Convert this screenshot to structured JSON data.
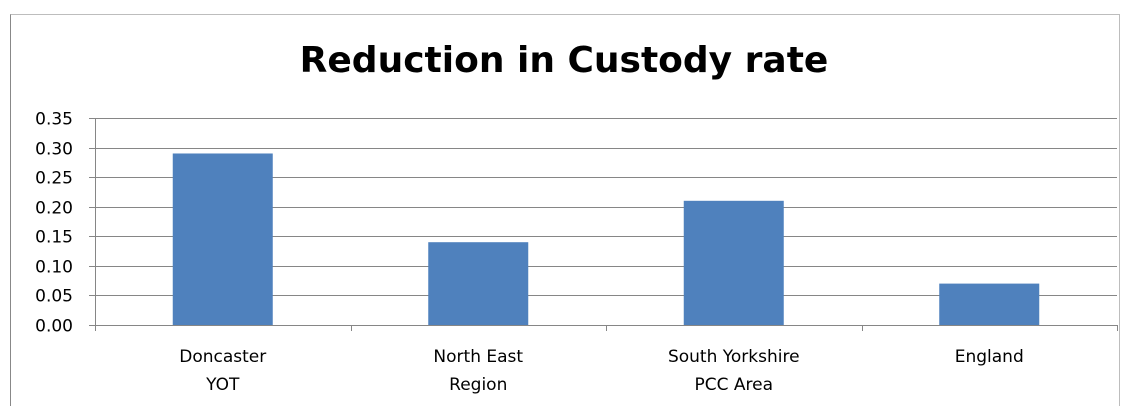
{
  "chart_data": {
    "type": "bar",
    "title": "Reduction in Custody rate",
    "categories": [
      [
        "Doncaster",
        "YOT"
      ],
      [
        "North East",
        "Region"
      ],
      [
        "South Yorkshire",
        "PCC Area"
      ],
      [
        "England"
      ]
    ],
    "values": [
      0.29,
      0.14,
      0.21,
      0.07
    ],
    "ylim": [
      0,
      0.35
    ],
    "yticks": [
      "0.00",
      "0.05",
      "0.10",
      "0.15",
      "0.20",
      "0.25",
      "0.30",
      "0.35"
    ],
    "grid": true,
    "bar_color": "#4F81BD",
    "grid_color": "#868686"
  }
}
